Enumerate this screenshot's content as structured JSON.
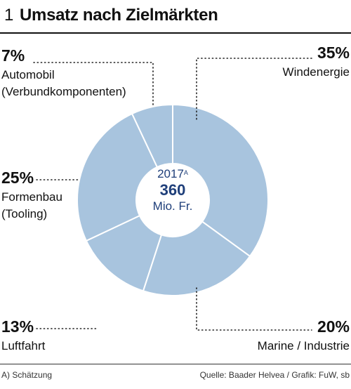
{
  "header": {
    "number": "1",
    "title": "Umsatz nach Zielmärkten"
  },
  "center": {
    "year": "2017",
    "year_note": "A",
    "value": "360",
    "unit": "Mio. Fr."
  },
  "labels": {
    "automobil_pct": "7%",
    "automobil_l1": "Automobil",
    "automobil_l2": "(Verbundkomponenten)",
    "formenbau_pct": "25%",
    "formenbau_l1": "Formenbau",
    "formenbau_l2": "(Tooling)",
    "luftfahrt_pct": "13%",
    "luftfahrt_l1": "Luftfahrt",
    "wind_pct": "35%",
    "wind_l1": "Windenergie",
    "marine_pct": "20%",
    "marine_l1": "Marine / Industrie"
  },
  "footer": {
    "note": "A) Schätzung",
    "source": "Quelle: Baader Helvea / Grafik: FuW, sb"
  },
  "colors": {
    "slice": "#a8c4de",
    "divider": "#ffffff",
    "center_text": "#1f3f7a"
  },
  "chart_data": {
    "type": "pie",
    "title": "Umsatz nach Zielmärkten",
    "categories": [
      "Windenergie",
      "Marine / Industrie",
      "Luftfahrt",
      "Formenbau (Tooling)",
      "Automobil (Verbundkomponenten)"
    ],
    "values": [
      35,
      20,
      13,
      25,
      7
    ],
    "unit": "%",
    "total": {
      "year": "2017",
      "value": 360,
      "unit": "Mio. Fr."
    }
  }
}
